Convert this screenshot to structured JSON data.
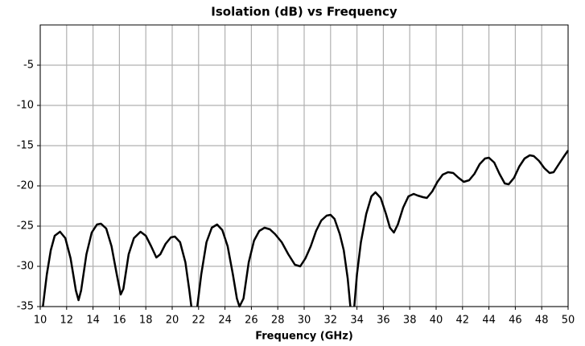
{
  "chart_data": {
    "type": "line",
    "title": "Isolation (dB) vs Frequency",
    "x_label": "Frequency (GHz)",
    "x": [
      10.2,
      10.5,
      10.8,
      11.1,
      11.5,
      11.9,
      12.3,
      12.7,
      12.9,
      13.1,
      13.5,
      13.9,
      14.3,
      14.6,
      15.0,
      15.4,
      15.8,
      16.1,
      16.3,
      16.7,
      17.1,
      17.6,
      18.0,
      18.4,
      18.8,
      19.1,
      19.5,
      19.9,
      20.2,
      20.6,
      21.0,
      21.3,
      21.45,
      21.7,
      21.9,
      22.2,
      22.6,
      23.0,
      23.4,
      23.8,
      24.2,
      24.6,
      24.9,
      25.1,
      25.4,
      25.8,
      26.2,
      26.6,
      27.0,
      27.4,
      27.8,
      28.3,
      28.8,
      29.3,
      29.7,
      30.1,
      30.5,
      30.9,
      31.3,
      31.7,
      32.0,
      32.3,
      32.7,
      33.0,
      33.3,
      33.5,
      33.65,
      33.8,
      34.0,
      34.3,
      34.7,
      35.1,
      35.4,
      35.8,
      36.2,
      36.5,
      36.8,
      37.1,
      37.5,
      37.9,
      38.3,
      38.6,
      39.0,
      39.3,
      39.7,
      40.1,
      40.5,
      40.9,
      41.3,
      41.7,
      42.1,
      42.5,
      42.9,
      43.3,
      43.7,
      44.0,
      44.4,
      44.8,
      45.2,
      45.5,
      45.9,
      46.3,
      46.7,
      47.1,
      47.4,
      47.8,
      48.2,
      48.6,
      48.9,
      49.3,
      49.7,
      50
    ],
    "series": [
      {
        "name": "Isolation",
        "color": "#000000",
        "values": [
          -35,
          -31,
          -28,
          -26.2,
          -25.7,
          -26.5,
          -29,
          -33,
          -34.2,
          -33,
          -28.5,
          -25.8,
          -24.8,
          -24.7,
          -25.3,
          -27.5,
          -31,
          -33.5,
          -32.8,
          -28.5,
          -26.5,
          -25.7,
          -26.2,
          -27.5,
          -28.9,
          -28.5,
          -27.2,
          -26.4,
          -26.3,
          -27,
          -29.5,
          -33,
          -35,
          null,
          -35,
          -31,
          -27,
          -25.2,
          -24.8,
          -25.5,
          -27.5,
          -31,
          -34,
          -35,
          -34,
          -29.5,
          -26.8,
          -25.6,
          -25.2,
          -25.4,
          -26,
          -27,
          -28.5,
          -29.8,
          -30,
          -29,
          -27.5,
          -25.6,
          -24.3,
          -23.7,
          -23.6,
          -24.1,
          -26,
          -28,
          -31.5,
          -35,
          null,
          -35,
          -31,
          -27,
          -23.5,
          -21.3,
          -20.8,
          -21.5,
          -23.5,
          -25.2,
          -25.8,
          -24.8,
          -22.7,
          -21.3,
          -21,
          -21.2,
          -21.4,
          -21.5,
          -20.7,
          -19.5,
          -18.6,
          -18.3,
          -18.4,
          -19,
          -19.5,
          -19.3,
          -18.5,
          -17.3,
          -16.6,
          -16.5,
          -17.1,
          -18.5,
          -19.7,
          -19.8,
          -19,
          -17.6,
          -16.6,
          -16.2,
          -16.3,
          -16.9,
          -17.8,
          -18.4,
          -18.3,
          -17.3,
          -16.3,
          -15.6
        ]
      }
    ],
    "xlim": [
      10,
      50
    ],
    "xticks": [
      10,
      12,
      14,
      16,
      18,
      20,
      22,
      24,
      26,
      28,
      30,
      32,
      34,
      36,
      38,
      40,
      42,
      44,
      46,
      48,
      50
    ],
    "ylim": [
      -35,
      0
    ],
    "yticks": [
      -35,
      -30,
      -25,
      -20,
      -15,
      -10,
      -5
    ],
    "grid": true
  }
}
